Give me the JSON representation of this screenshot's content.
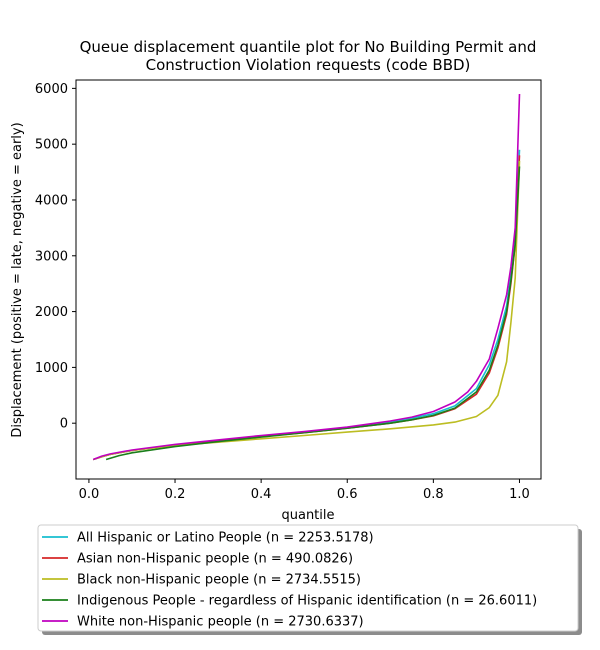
{
  "chart_data": {
    "type": "line",
    "title_lines": [
      "Queue displacement quantile plot for No Building Permit and",
      "Construction Violation  requests (code BBD)"
    ],
    "xlabel": "quantile",
    "ylabel": "Displacement (positive = late, negative = early)",
    "xlim": [
      -0.03,
      1.05
    ],
    "ylim": [
      -1000,
      6150
    ],
    "x_ticks": [
      0.0,
      0.2,
      0.4,
      0.6,
      0.8,
      1.0
    ],
    "x_tick_labels": [
      "0.0",
      "0.2",
      "0.4",
      "0.6",
      "0.8",
      "1.0"
    ],
    "y_ticks": [
      0,
      1000,
      2000,
      3000,
      4000,
      5000,
      6000
    ],
    "y_tick_labels": [
      "0",
      "1000",
      "2000",
      "3000",
      "4000",
      "5000",
      "6000"
    ],
    "grid": false,
    "legend_position": "below",
    "series": [
      {
        "name": "All Hispanic or Latino People (n = 2253.5178)",
        "color": "#17becf",
        "points": [
          [
            0.01,
            -650
          ],
          [
            0.03,
            -600
          ],
          [
            0.05,
            -560
          ],
          [
            0.1,
            -490
          ],
          [
            0.2,
            -390
          ],
          [
            0.3,
            -310
          ],
          [
            0.4,
            -230
          ],
          [
            0.5,
            -160
          ],
          [
            0.6,
            -80
          ],
          [
            0.7,
            20
          ],
          [
            0.75,
            90
          ],
          [
            0.8,
            170
          ],
          [
            0.85,
            310
          ],
          [
            0.9,
            620
          ],
          [
            0.93,
            1050
          ],
          [
            0.95,
            1500
          ],
          [
            0.97,
            2100
          ],
          [
            0.98,
            2650
          ],
          [
            0.99,
            3350
          ],
          [
            1.0,
            4900
          ]
        ]
      },
      {
        "name": "Asian non-Hispanic people (n = 490.0826)",
        "color": "#d62728",
        "points": [
          [
            0.01,
            -650
          ],
          [
            0.03,
            -600
          ],
          [
            0.05,
            -560
          ],
          [
            0.1,
            -490
          ],
          [
            0.2,
            -390
          ],
          [
            0.3,
            -310
          ],
          [
            0.4,
            -240
          ],
          [
            0.5,
            -170
          ],
          [
            0.6,
            -90
          ],
          [
            0.7,
            0
          ],
          [
            0.75,
            60
          ],
          [
            0.8,
            130
          ],
          [
            0.85,
            260
          ],
          [
            0.9,
            520
          ],
          [
            0.93,
            900
          ],
          [
            0.95,
            1350
          ],
          [
            0.97,
            1950
          ],
          [
            0.98,
            2500
          ],
          [
            0.99,
            3200
          ],
          [
            1.0,
            4800
          ]
        ]
      },
      {
        "name": "Black non-Hispanic people (n = 2734.5515)",
        "color": "#bcbd22",
        "points": [
          [
            0.01,
            -650
          ],
          [
            0.03,
            -600
          ],
          [
            0.05,
            -560
          ],
          [
            0.1,
            -490
          ],
          [
            0.2,
            -400
          ],
          [
            0.3,
            -340
          ],
          [
            0.4,
            -280
          ],
          [
            0.5,
            -220
          ],
          [
            0.6,
            -160
          ],
          [
            0.7,
            -100
          ],
          [
            0.8,
            -30
          ],
          [
            0.85,
            20
          ],
          [
            0.9,
            120
          ],
          [
            0.93,
            280
          ],
          [
            0.95,
            500
          ],
          [
            0.97,
            1100
          ],
          [
            0.98,
            1800
          ],
          [
            0.99,
            2600
          ],
          [
            1.0,
            4700
          ]
        ]
      },
      {
        "name": "Indigenous People - regardless of Hispanic identification (n = 26.6011)",
        "color": "#1a7f1a",
        "points": [
          [
            0.04,
            -650
          ],
          [
            0.07,
            -580
          ],
          [
            0.1,
            -530
          ],
          [
            0.2,
            -420
          ],
          [
            0.3,
            -330
          ],
          [
            0.4,
            -250
          ],
          [
            0.5,
            -170
          ],
          [
            0.6,
            -90
          ],
          [
            0.7,
            0
          ],
          [
            0.75,
            60
          ],
          [
            0.8,
            140
          ],
          [
            0.85,
            270
          ],
          [
            0.9,
            560
          ],
          [
            0.93,
            950
          ],
          [
            0.95,
            1400
          ],
          [
            0.97,
            2000
          ],
          [
            0.98,
            2550
          ],
          [
            0.99,
            3200
          ],
          [
            1.0,
            4600
          ]
        ]
      },
      {
        "name": "White non-Hispanic people (n = 2730.6337)",
        "color": "#bf00bf",
        "points": [
          [
            0.01,
            -650
          ],
          [
            0.03,
            -590
          ],
          [
            0.05,
            -550
          ],
          [
            0.1,
            -480
          ],
          [
            0.2,
            -380
          ],
          [
            0.3,
            -300
          ],
          [
            0.4,
            -220
          ],
          [
            0.5,
            -150
          ],
          [
            0.6,
            -70
          ],
          [
            0.7,
            40
          ],
          [
            0.75,
            110
          ],
          [
            0.8,
            210
          ],
          [
            0.85,
            380
          ],
          [
            0.88,
            560
          ],
          [
            0.9,
            750
          ],
          [
            0.93,
            1150
          ],
          [
            0.95,
            1700
          ],
          [
            0.97,
            2300
          ],
          [
            0.98,
            2800
          ],
          [
            0.99,
            3500
          ],
          [
            1.0,
            5900
          ]
        ]
      }
    ]
  }
}
